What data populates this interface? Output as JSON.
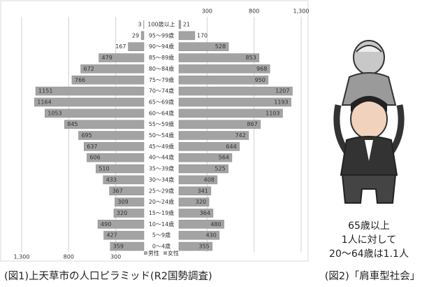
{
  "chart_data": {
    "type": "pyramid",
    "title": "(図1)上天草市の人口ピラミッド(R2国勢調査)",
    "categories": [
      "100歳以上",
      "95～99歳",
      "90～94歳",
      "85～89歳",
      "80～84歳",
      "75～79歳",
      "70～74歳",
      "65～69歳",
      "60～64歳",
      "55～59歳",
      "50～54歳",
      "45～49歳",
      "40～44歳",
      "35～39歳",
      "30～34歳",
      "25～29歳",
      "20～24歳",
      "15～19歳",
      "10～14歳",
      "5～9歳",
      "0～4歳"
    ],
    "series": [
      {
        "name": "男性",
        "color": "#a3a3a3",
        "values": [
          3,
          29,
          167,
          479,
          672,
          766,
          1151,
          1164,
          1053,
          845,
          695,
          637,
          606,
          510,
          433,
          367,
          309,
          320,
          490,
          427,
          359
        ]
      },
      {
        "name": "女性",
        "color": "#a3a3a3",
        "values": [
          21,
          170,
          528,
          853,
          968,
          950,
          1207,
          1193,
          1103,
          867,
          742,
          644,
          564,
          525,
          408,
          341,
          320,
          364,
          480,
          430,
          355
        ]
      }
    ],
    "xlim": [
      0,
      1300
    ],
    "xticks": [
      {
        "value": 1300,
        "label": "1,300"
      },
      800,
      300
    ],
    "grid": true
  },
  "figure2": {
    "lines": [
      "65歳以上",
      "1人に対して",
      "20～64歳は1.1人"
    ],
    "caption": "(図2)「肩車型社会」"
  }
}
